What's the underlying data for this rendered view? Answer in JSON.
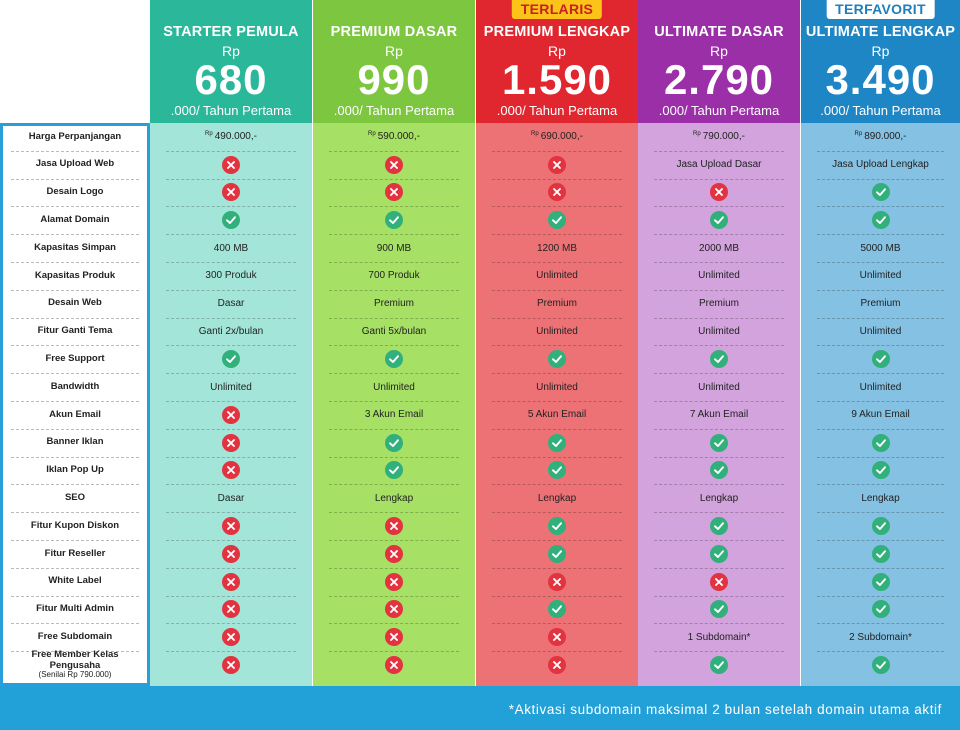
{
  "plans": [
    {
      "name": "STARTER PEMULA",
      "currency": "Rp",
      "price": "680",
      "suffix": ".000/ Tahun Pertama",
      "badge": "",
      "header_color": "#2bb89a",
      "body_color": "#a3e6d9",
      "badge_bg": "",
      "badge_color": ""
    },
    {
      "name": "PREMIUM DASAR",
      "currency": "Rp",
      "price": "990",
      "suffix": ".000/ Tahun Pertama",
      "badge": "",
      "header_color": "#7dc63f",
      "body_color": "#a6e065",
      "badge_bg": "",
      "badge_color": ""
    },
    {
      "name": "PREMIUM LENGKAP",
      "currency": "Rp",
      "price": "1.590",
      "suffix": ".000/ Tahun Pertama",
      "badge": "TERLARIS",
      "header_color": "#e0262e",
      "body_color": "#ed7275",
      "badge_bg": "#fcc419",
      "badge_color": "#c81e24"
    },
    {
      "name": "ULTIMATE DASAR",
      "currency": "Rp",
      "price": "2.790",
      "suffix": ".000/ Tahun Pertama",
      "badge": "",
      "header_color": "#9a2fa8",
      "body_color": "#d2a3dc",
      "badge_bg": "",
      "badge_color": ""
    },
    {
      "name": "ULTIMATE LENGKAP",
      "currency": "Rp",
      "price": "3.490",
      "suffix": ".000/ Tahun Pertama",
      "badge": "TERFAVORIT",
      "header_color": "#1f86c6",
      "body_color": "#84c1e2",
      "badge_bg": "#ffffff",
      "badge_color": "#1f7fbd"
    }
  ],
  "features": [
    {
      "label": "Harga Perpanjangan",
      "values": [
        "rp:490.000,-",
        "rp:590.000,-",
        "rp:690.000,-",
        "rp:790.000,-",
        "rp:890.000,-"
      ]
    },
    {
      "label": "Jasa Upload Web",
      "values": [
        "no",
        "no",
        "no",
        "Jasa Upload Dasar",
        "Jasa Upload Lengkap"
      ]
    },
    {
      "label": "Desain Logo",
      "values": [
        "no",
        "no",
        "no",
        "no",
        "yes"
      ]
    },
    {
      "label": "Alamat Domain",
      "values": [
        "yes",
        "yes",
        "yes",
        "yes",
        "yes"
      ]
    },
    {
      "label": "Kapasitas Simpan",
      "values": [
        "400 MB",
        "900 MB",
        "1200 MB",
        "2000 MB",
        "5000 MB"
      ]
    },
    {
      "label": "Kapasitas Produk",
      "values": [
        "300 Produk",
        "700 Produk",
        "Unlimited",
        "Unlimited",
        "Unlimited"
      ]
    },
    {
      "label": "Desain Web",
      "values": [
        "Dasar",
        "Premium",
        "Premium",
        "Premium",
        "Premium"
      ]
    },
    {
      "label": "Fitur Ganti Tema",
      "values": [
        "Ganti 2x/bulan",
        "Ganti 5x/bulan",
        "Unlimited",
        "Unlimited",
        "Unlimited"
      ]
    },
    {
      "label": "Free Support",
      "values": [
        "yes",
        "yes",
        "yes",
        "yes",
        "yes"
      ]
    },
    {
      "label": "Bandwidth",
      "values": [
        "Unlimited",
        "Unlimited",
        "Unlimited",
        "Unlimited",
        "Unlimited"
      ]
    },
    {
      "label": "Akun Email",
      "values": [
        "no",
        "3 Akun Email",
        "5 Akun Email",
        "7 Akun Email",
        "9 Akun Email"
      ]
    },
    {
      "label": "Banner Iklan",
      "values": [
        "no",
        "yes",
        "yes",
        "yes",
        "yes"
      ]
    },
    {
      "label": "Iklan Pop Up",
      "values": [
        "no",
        "yes",
        "yes",
        "yes",
        "yes"
      ]
    },
    {
      "label": "SEO",
      "values": [
        "Dasar",
        "Lengkap",
        "Lengkap",
        "Lengkap",
        "Lengkap"
      ]
    },
    {
      "label": "Fitur Kupon Diskon",
      "values": [
        "no",
        "no",
        "yes",
        "yes",
        "yes"
      ]
    },
    {
      "label": "Fitur Reseller",
      "values": [
        "no",
        "no",
        "yes",
        "yes",
        "yes"
      ]
    },
    {
      "label": "White Label",
      "values": [
        "no",
        "no",
        "no",
        "no",
        "yes"
      ]
    },
    {
      "label": "Fitur Multi Admin",
      "values": [
        "no",
        "no",
        "yes",
        "yes",
        "yes"
      ]
    },
    {
      "label": "Free Subdomain",
      "values": [
        "no",
        "no",
        "no",
        "1 Subdomain*",
        "2 Subdomain*"
      ]
    },
    {
      "label": "Free Member Kelas Pengusaha",
      "sublabel": "(Senilai Rp 790.000)",
      "values": [
        "no",
        "no",
        "no",
        "yes",
        "yes"
      ]
    }
  ],
  "currency_small": "Rp",
  "footer_note": "*Aktivasi subdomain maksimal 2 bulan setelah domain utama aktif",
  "colors": {
    "footer": "#22a1d9",
    "label_border": "#2a9ed9",
    "check": "#32b07c",
    "cross": "#e33340"
  }
}
